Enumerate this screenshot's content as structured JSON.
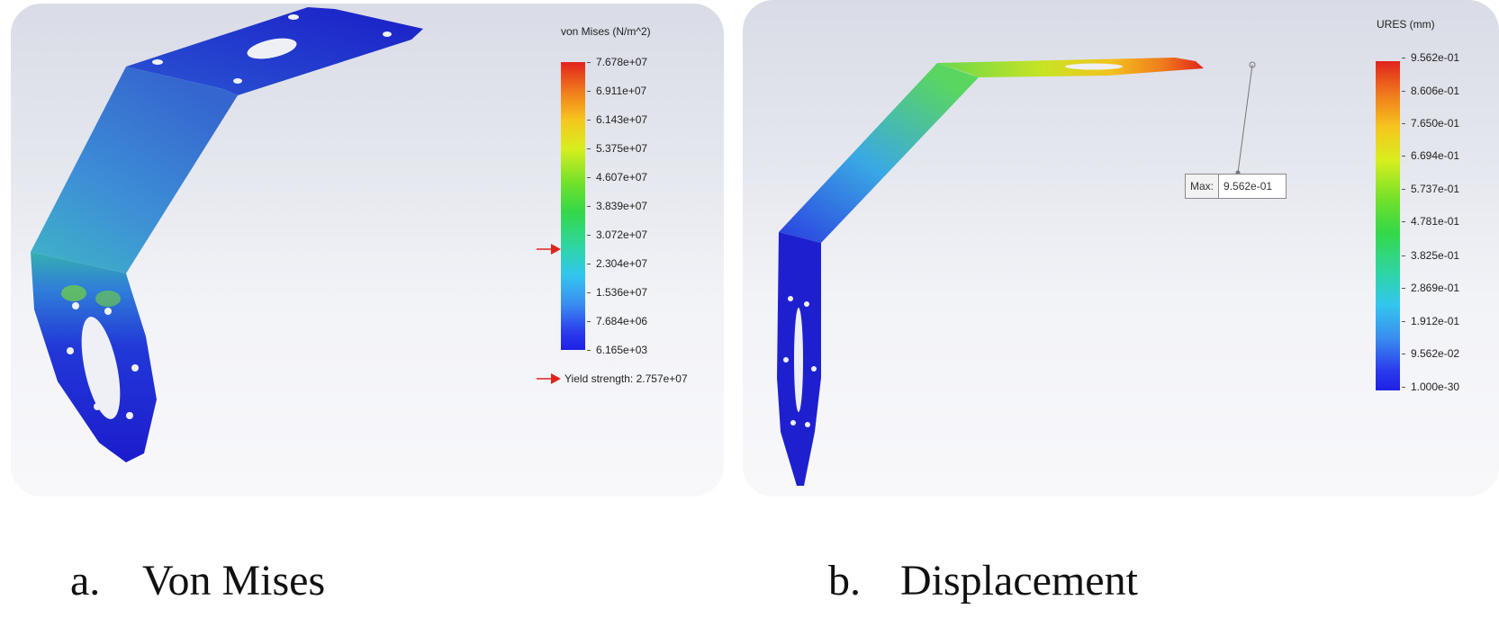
{
  "panels": {
    "a": {
      "legend_title": "von Mises (N/m^2)",
      "ticks": [
        "7.678e+07",
        "6.911e+07",
        "6.143e+07",
        "5.375e+07",
        "4.607e+07",
        "3.839e+07",
        "3.072e+07",
        "2.304e+07",
        "1.536e+07",
        "7.684e+06",
        "6.165e+03"
      ],
      "yield_label": "Yield strength: 2.757e+07"
    },
    "b": {
      "legend_title": "URES (mm)",
      "ticks": [
        "9.562e-01",
        "8.606e-01",
        "7.650e-01",
        "6.694e-01",
        "5.737e-01",
        "4.781e-01",
        "3.825e-01",
        "2.869e-01",
        "1.912e-01",
        "9.562e-02",
        "1.000e-30"
      ],
      "max_label": "Max:",
      "max_value": "9.562e-01"
    }
  },
  "captions": {
    "a": {
      "letter": "a.",
      "text": "Von Mises"
    },
    "b": {
      "letter": "b.",
      "text": "Displacement"
    }
  },
  "colors": {
    "stress_low": "#1f1fd6",
    "stress_mid": "#3a8ee6",
    "indicator_arrow": "#e0231c"
  }
}
